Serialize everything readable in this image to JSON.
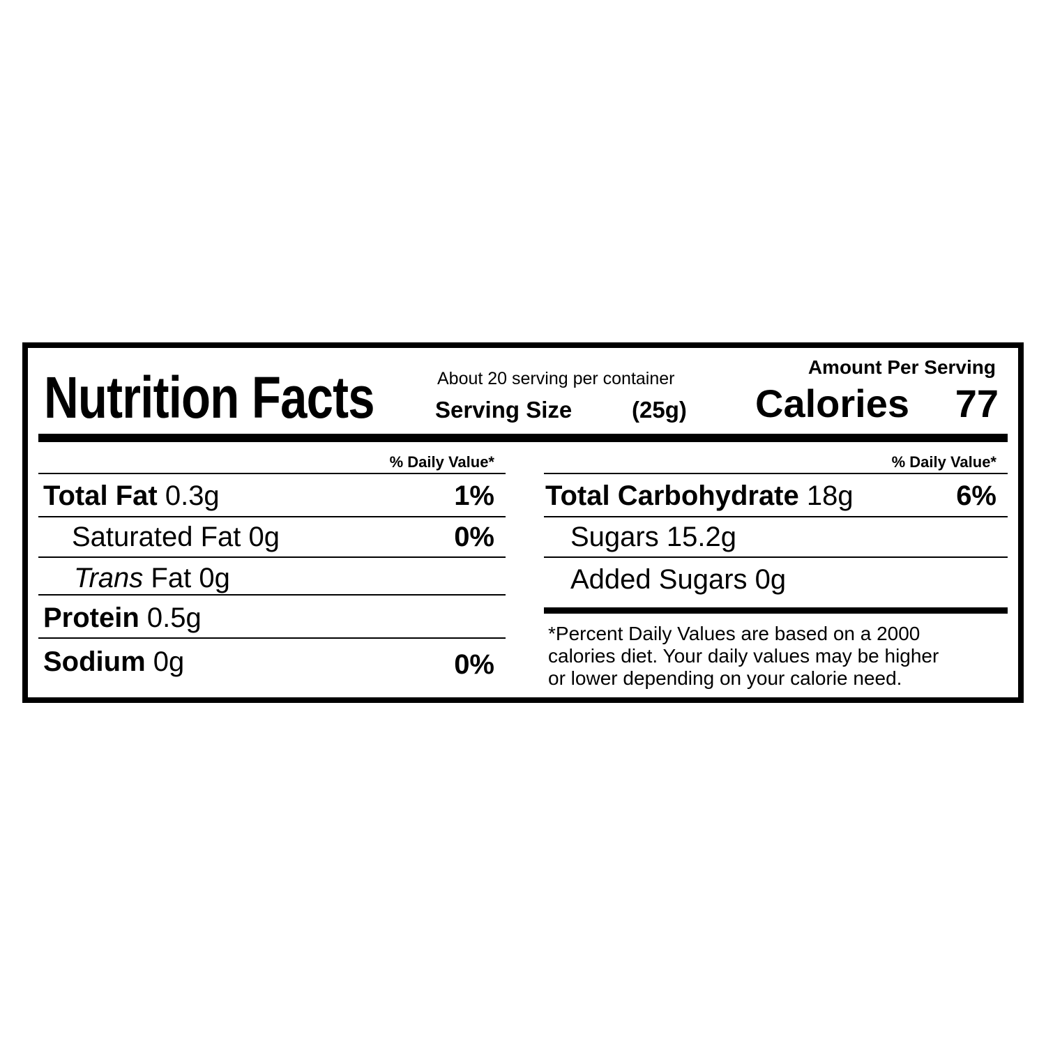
{
  "label": {
    "title": "Nutrition Facts",
    "servings_per_container": "About 20 serving per container",
    "serving_size_label": "Serving Size",
    "serving_size_value": "(25g)",
    "amount_per_serving": "Amount Per Serving",
    "calories_label": "Calories",
    "calories_value": "77"
  },
  "left": {
    "dv_header": "% Daily Value*",
    "rows": [
      {
        "name": "Total Fat",
        "amount": "0.3g",
        "dv": "1%"
      },
      {
        "name": "Saturated Fat",
        "amount": "0g",
        "dv": "0%"
      },
      {
        "name": "Trans",
        "name_rest": "Fat",
        "amount": "0g"
      },
      {
        "name": "Protein",
        "amount": "0.5g"
      },
      {
        "name": "Sodium",
        "amount": "0g",
        "dv": "0%"
      }
    ]
  },
  "right": {
    "dv_header": "% Daily Value*",
    "rows": [
      {
        "name": "Total Carbohydrate",
        "amount": "18g",
        "dv": "6%"
      },
      {
        "name": "Sugars",
        "amount": "15.2g"
      },
      {
        "name": "Added Sugars",
        "amount": "0g"
      }
    ],
    "footnote": [
      "*Percent Daily Values are based on a 2000",
      "calories diet. Your daily  values may be higher",
      "or lower depending on your calorie need."
    ]
  }
}
